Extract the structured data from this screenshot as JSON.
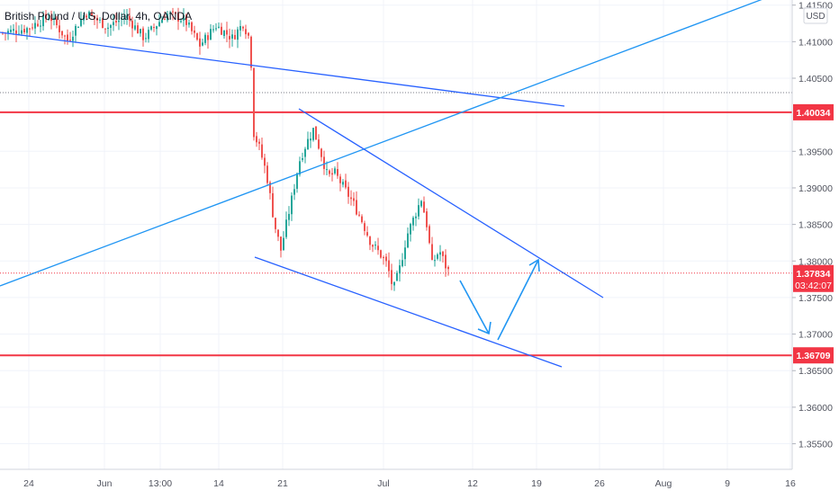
{
  "chart_data": {
    "type": "candlestick",
    "title": "British Pound / U.S. Dollar, 4h, OANDA",
    "currency_label": "USD",
    "ylim": [
      1.3515,
      1.4157
    ],
    "price_ticks": [
      "1.41500",
      "1.41000",
      "1.40500",
      "1.39500",
      "1.39000",
      "1.38500",
      "1.38000",
      "1.37500",
      "1.37000",
      "1.36500",
      "1.36000",
      "1.35500"
    ],
    "date_ticks": [
      "24",
      "Jun",
      "13:00",
      "14",
      "21",
      "Jul",
      "12",
      "19",
      "26",
      "Aug",
      "9",
      "16"
    ],
    "grid": true,
    "horizontal_levels": [
      {
        "price": 1.40034,
        "label": "1.40034",
        "color": "#f23645"
      },
      {
        "price": 1.36709,
        "label": "1.36709",
        "color": "#f23645"
      }
    ],
    "current_price": {
      "price": 1.37834,
      "label": "1.37834",
      "countdown": "03:42:07",
      "color": "#f23645"
    },
    "colors": {
      "up": "#26a69a",
      "down": "#ef5350",
      "trendline": "#2962ff",
      "arrow": "#2196f3",
      "grid": "#f0f3fa"
    }
  }
}
